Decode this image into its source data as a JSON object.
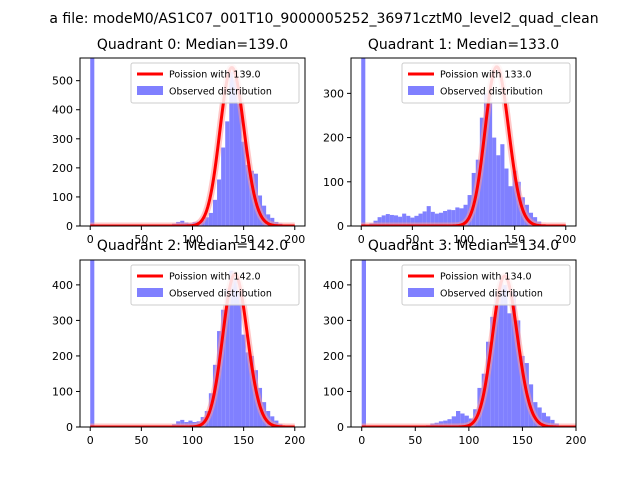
{
  "figure": {
    "suptitle": "a file: modeM0/AS1C07_001T10_9000005252_36971cztM0_level2_quad_clean"
  },
  "colors": {
    "hist": "#8080ff",
    "poisson": "#ff0000",
    "poisson_alpha_band": "#ff9999"
  },
  "chart_data": [
    {
      "type": "bar",
      "title": "Quadrant 0: Median=139.0",
      "xlim": [
        -10,
        210
      ],
      "ylim": [
        0,
        578
      ],
      "xticks": [
        0,
        50,
        100,
        150,
        200
      ],
      "yticks": [
        0,
        100,
        200,
        300,
        400,
        500
      ],
      "legend": {
        "placement": "top-right",
        "entries": [
          "Poission with 139.0",
          "Observed distribution"
        ]
      },
      "poisson_mean": 139.0,
      "poisson_peak": 545,
      "bin_width": 4,
      "hist_x": [
        0,
        4,
        8,
        12,
        16,
        20,
        24,
        28,
        32,
        36,
        40,
        44,
        48,
        52,
        56,
        60,
        64,
        68,
        72,
        76,
        80,
        84,
        88,
        92,
        96,
        100,
        104,
        108,
        112,
        116,
        120,
        124,
        128,
        132,
        136,
        140,
        144,
        148,
        152,
        156,
        160,
        164,
        168,
        172,
        176,
        180,
        184,
        188,
        192,
        196
      ],
      "hist_y": [
        578,
        0,
        0,
        0,
        0,
        0,
        0,
        0,
        0,
        0,
        0,
        0,
        0,
        0,
        0,
        0,
        0,
        0,
        1,
        3,
        8,
        14,
        18,
        12,
        9,
        13,
        15,
        22,
        30,
        45,
        90,
        160,
        270,
        360,
        530,
        505,
        420,
        290,
        210,
        190,
        180,
        105,
        70,
        40,
        28,
        14,
        8,
        4,
        3,
        1
      ]
    },
    {
      "type": "bar",
      "title": "Quadrant 1: Median=133.0",
      "xlim": [
        -10,
        210
      ],
      "ylim": [
        0,
        380
      ],
      "xticks": [
        0,
        50,
        100,
        150,
        200
      ],
      "yticks": [
        0,
        100,
        200,
        300
      ],
      "legend": {
        "placement": "top-right",
        "entries": [
          "Poission with 133.0",
          "Observed distribution"
        ]
      },
      "poisson_mean": 133.0,
      "poisson_peak": 360,
      "bin_width": 4,
      "hist_x": [
        0,
        4,
        8,
        12,
        16,
        20,
        24,
        28,
        32,
        36,
        40,
        44,
        48,
        52,
        56,
        60,
        64,
        68,
        72,
        76,
        80,
        84,
        88,
        92,
        96,
        100,
        104,
        108,
        112,
        116,
        120,
        124,
        128,
        132,
        136,
        140,
        144,
        148,
        152,
        156,
        160,
        164,
        168,
        172,
        176,
        180,
        184,
        188,
        192,
        196
      ],
      "hist_y": [
        380,
        2,
        6,
        12,
        20,
        24,
        27,
        25,
        24,
        21,
        28,
        23,
        19,
        23,
        28,
        33,
        45,
        32,
        28,
        30,
        34,
        37,
        36,
        42,
        40,
        48,
        70,
        120,
        150,
        245,
        300,
        280,
        200,
        160,
        185,
        130,
        90,
        125,
        100,
        65,
        48,
        30,
        20,
        10,
        4,
        2,
        1,
        0,
        0,
        0
      ]
    },
    {
      "type": "bar",
      "title": "Quadrant 2: Median=142.0",
      "xlim": [
        -10,
        210
      ],
      "ylim": [
        0,
        470
      ],
      "xticks": [
        0,
        50,
        100,
        150,
        200
      ],
      "yticks": [
        0,
        100,
        200,
        300,
        400
      ],
      "legend": {
        "placement": "top-right",
        "entries": [
          "Poission with 142.0",
          "Observed distribution"
        ]
      },
      "poisson_mean": 142.0,
      "poisson_peak": 430,
      "bin_width": 4,
      "hist_x": [
        0,
        4,
        8,
        12,
        16,
        20,
        24,
        28,
        32,
        36,
        40,
        44,
        48,
        52,
        56,
        60,
        64,
        68,
        72,
        76,
        80,
        84,
        88,
        92,
        96,
        100,
        104,
        108,
        112,
        116,
        120,
        124,
        128,
        132,
        136,
        140,
        144,
        148,
        152,
        156,
        160,
        164,
        168,
        172,
        176,
        180,
        184,
        188,
        192,
        196
      ],
      "hist_y": [
        470,
        0,
        0,
        0,
        0,
        0,
        0,
        0,
        0,
        0,
        0,
        0,
        0,
        0,
        0,
        0,
        0,
        0,
        0,
        2,
        8,
        16,
        20,
        14,
        18,
        14,
        16,
        28,
        45,
        95,
        175,
        270,
        330,
        390,
        440,
        420,
        380,
        260,
        210,
        200,
        160,
        110,
        70,
        45,
        30,
        18,
        8,
        4,
        2,
        1
      ]
    },
    {
      "type": "bar",
      "title": "Quadrant 3: Median=134.0",
      "xlim": [
        -10,
        200
      ],
      "ylim": [
        0,
        470
      ],
      "xticks": [
        0,
        50,
        100,
        150,
        200
      ],
      "yticks": [
        0,
        100,
        200,
        300,
        400
      ],
      "legend": {
        "placement": "top-right",
        "entries": [
          "Poission with 134.0",
          "Observed distribution"
        ]
      },
      "poisson_mean": 134.0,
      "poisson_peak": 425,
      "bin_width": 4,
      "hist_x": [
        0,
        4,
        8,
        12,
        16,
        20,
        24,
        28,
        32,
        36,
        40,
        44,
        48,
        52,
        56,
        60,
        64,
        68,
        72,
        76,
        80,
        84,
        88,
        92,
        96,
        100,
        104,
        108,
        112,
        116,
        120,
        124,
        128,
        132,
        136,
        140,
        144,
        148,
        152,
        156,
        160,
        164,
        168,
        172,
        176,
        180,
        184,
        188
      ],
      "hist_y": [
        470,
        0,
        0,
        0,
        0,
        0,
        0,
        0,
        0,
        0,
        0,
        0,
        0,
        0,
        2,
        5,
        10,
        12,
        16,
        18,
        22,
        30,
        45,
        38,
        32,
        24,
        50,
        110,
        150,
        240,
        310,
        380,
        410,
        400,
        320,
        380,
        300,
        200,
        180,
        120,
        70,
        55,
        40,
        30,
        20,
        10,
        4,
        2
      ]
    }
  ]
}
